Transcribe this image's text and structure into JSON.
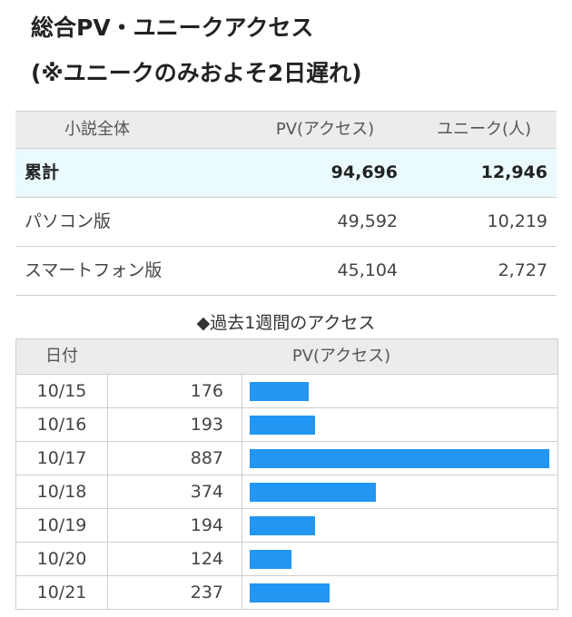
{
  "header": {
    "title_line1": "総合PV・ユニークアクセス",
    "title_line2": "(※ユニークのみおよそ2日遅れ)"
  },
  "summary": {
    "columns": [
      "小説全体",
      "PV(アクセス)",
      "ユニーク(人)"
    ],
    "rows": [
      {
        "label": "累計",
        "pv": "94,696",
        "unique": "12,946"
      },
      {
        "label": "パソコン版",
        "pv": "49,592",
        "unique": "10,219"
      },
      {
        "label": "スマートフォン版",
        "pv": "45,104",
        "unique": "2,727"
      }
    ]
  },
  "weekly": {
    "title": "◆過去1週間のアクセス",
    "columns": [
      "日付",
      "PV(アクセス)"
    ],
    "accent_color": "#2196f3"
  },
  "chart_data": {
    "type": "bar",
    "categories": [
      "10/15",
      "10/16",
      "10/17",
      "10/18",
      "10/19",
      "10/20",
      "10/21"
    ],
    "values": [
      176,
      193,
      887,
      374,
      194,
      124,
      237
    ],
    "labels": [
      "176",
      "193",
      "887",
      "374",
      "194",
      "124",
      "237"
    ]
  }
}
